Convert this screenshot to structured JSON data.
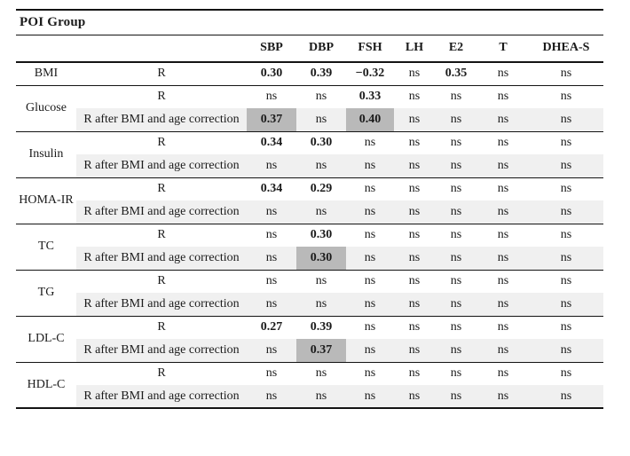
{
  "table": {
    "title": "POI Group",
    "columns": [
      "SBP",
      "DBP",
      "FSH",
      "LH",
      "E2",
      "T",
      "DHEA-S"
    ],
    "ns_text": "ns",
    "groups": [
      {
        "param": "BMI",
        "rows": [
          {
            "label": "R",
            "shaded": false,
            "highlights": [],
            "values": [
              "0.30",
              "0.39",
              "−0.32",
              "ns",
              "0.35",
              "ns",
              "ns"
            ]
          }
        ]
      },
      {
        "param": "Glucose",
        "rows": [
          {
            "label": "R",
            "shaded": false,
            "highlights": [],
            "values": [
              "ns",
              "ns",
              "0.33",
              "ns",
              "ns",
              "ns",
              "ns"
            ]
          },
          {
            "label": "R after BMI and age correction",
            "shaded": true,
            "highlights": [
              0,
              2
            ],
            "values": [
              "0.37",
              "ns",
              "0.40",
              "ns",
              "ns",
              "ns",
              "ns"
            ]
          }
        ]
      },
      {
        "param": "Insulin",
        "rows": [
          {
            "label": "R",
            "shaded": false,
            "highlights": [],
            "values": [
              "0.34",
              "0.30",
              "ns",
              "ns",
              "ns",
              "ns",
              "ns"
            ]
          },
          {
            "label": "R after BMI and age correction",
            "shaded": true,
            "highlights": [],
            "values": [
              "ns",
              "ns",
              "ns",
              "ns",
              "ns",
              "ns",
              "ns"
            ]
          }
        ]
      },
      {
        "param": "HOMA-IR",
        "rows": [
          {
            "label": "R",
            "shaded": false,
            "highlights": [],
            "values": [
              "0.34",
              "0.29",
              "ns",
              "ns",
              "ns",
              "ns",
              "ns"
            ]
          },
          {
            "label": "R after BMI and age correction",
            "shaded": true,
            "highlights": [],
            "values": [
              "ns",
              "ns",
              "ns",
              "ns",
              "ns",
              "ns",
              "ns"
            ]
          }
        ]
      },
      {
        "param": "TC",
        "rows": [
          {
            "label": "R",
            "shaded": false,
            "highlights": [],
            "values": [
              "ns",
              "0.30",
              "ns",
              "ns",
              "ns",
              "ns",
              "ns"
            ]
          },
          {
            "label": "R after BMI and age correction",
            "shaded": true,
            "highlights": [
              1
            ],
            "values": [
              "ns",
              "0.30",
              "ns",
              "ns",
              "ns",
              "ns",
              "ns"
            ]
          }
        ]
      },
      {
        "param": "TG",
        "rows": [
          {
            "label": "R",
            "shaded": false,
            "highlights": [],
            "values": [
              "ns",
              "ns",
              "ns",
              "ns",
              "ns",
              "ns",
              "ns"
            ]
          },
          {
            "label": "R after BMI and age correction",
            "shaded": true,
            "highlights": [],
            "values": [
              "ns",
              "ns",
              "ns",
              "ns",
              "ns",
              "ns",
              "ns"
            ]
          }
        ]
      },
      {
        "param": "LDL-C",
        "rows": [
          {
            "label": "R",
            "shaded": false,
            "highlights": [],
            "values": [
              "0.27",
              "0.39",
              "ns",
              "ns",
              "ns",
              "ns",
              "ns"
            ]
          },
          {
            "label": "R after BMI and age correction",
            "shaded": true,
            "highlights": [
              1
            ],
            "values": [
              "ns",
              "0.37",
              "ns",
              "ns",
              "ns",
              "ns",
              "ns"
            ]
          }
        ]
      },
      {
        "param": "HDL-C",
        "rows": [
          {
            "label": "R",
            "shaded": false,
            "highlights": [],
            "values": [
              "ns",
              "ns",
              "ns",
              "ns",
              "ns",
              "ns",
              "ns"
            ]
          },
          {
            "label": "R after BMI and age correction",
            "shaded": true,
            "highlights": [],
            "values": [
              "ns",
              "ns",
              "ns",
              "ns",
              "ns",
              "ns",
              "ns"
            ]
          }
        ]
      }
    ]
  },
  "colors": {
    "row_shade": "#f0f0f0",
    "cell_highlight": "#b9b9b9",
    "rule": "#141414",
    "text": "#1b1b1b"
  }
}
